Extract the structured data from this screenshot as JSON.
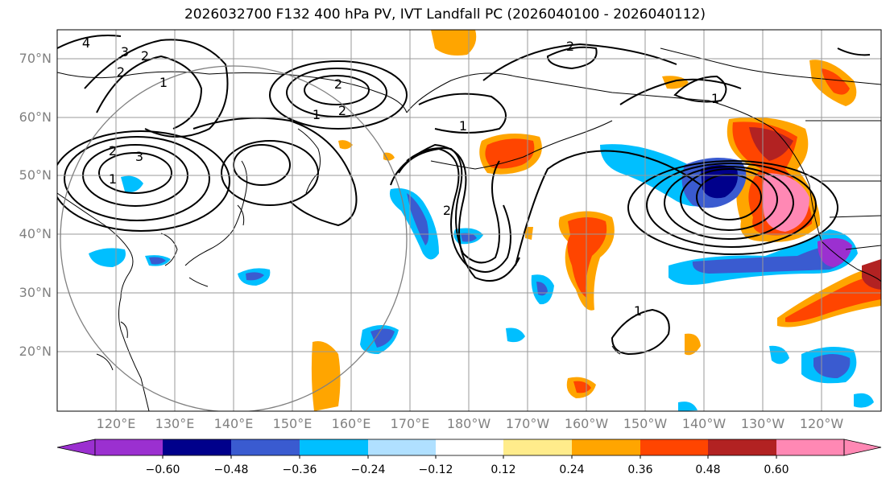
{
  "title": "2026032700 F132 400 hPa PV, IVT Landfall PC (2026040100 - 2026040112)",
  "lat_labels": [
    "70°N",
    "60°N",
    "50°N",
    "40°N",
    "30°N",
    "20°N"
  ],
  "lon_labels": [
    "120°E",
    "130°E",
    "140°E",
    "150°E",
    "160°E",
    "170°E",
    "180°W",
    "170°W",
    "160°W",
    "150°W",
    "140°W",
    "130°W",
    "120°W"
  ],
  "contour_labels": [
    "4",
    "3",
    "2",
    "2",
    "1",
    "2",
    "1",
    "2",
    "1",
    "2",
    "3",
    "2",
    "1",
    "2",
    "1",
    "1"
  ],
  "colorbar": {
    "ticks": [
      "−0.60",
      "−0.48",
      "−0.36",
      "−0.24",
      "−0.12",
      "0.12",
      "0.24",
      "0.36",
      "0.48",
      "0.60"
    ],
    "colors": [
      "#9b30d0",
      "#00008b",
      "#3a5bd0",
      "#00bfff",
      "#b0e0ff",
      "#ffffff",
      "#ffec8b",
      "#ffa500",
      "#ff4500",
      "#b22222",
      "#ff88b4"
    ]
  }
}
